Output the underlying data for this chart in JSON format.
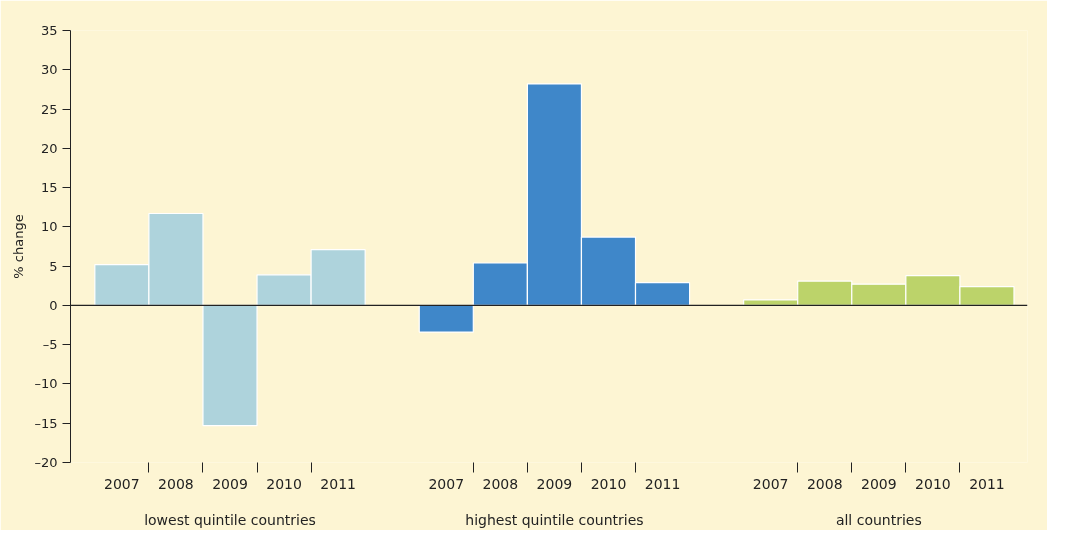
{
  "chart_data": {
    "type": "bar",
    "ylabel": "% change",
    "categories": [
      "2007",
      "2008",
      "2009",
      "2010",
      "2011",
      null,
      "2007",
      "2008",
      "2009",
      "2010",
      "2011",
      null,
      "2007",
      "2008",
      "2009",
      "2010",
      "2011"
    ],
    "series": [
      {
        "color": "#aed3dc",
        "values": [
          5.2,
          11.7,
          -15.3,
          3.9,
          7.1,
          null,
          null,
          null,
          null,
          null,
          null,
          null,
          null,
          null,
          null,
          null,
          null
        ]
      },
      {
        "color": "#3f87c9",
        "values": [
          null,
          null,
          null,
          null,
          null,
          null,
          -3.4,
          5.4,
          28.2,
          8.7,
          2.9,
          null,
          null,
          null,
          null,
          null,
          null
        ]
      },
      {
        "color": "#bcd36a",
        "values": [
          null,
          null,
          null,
          null,
          null,
          null,
          null,
          null,
          null,
          null,
          null,
          null,
          0.7,
          3.1,
          2.7,
          3.8,
          2.4
        ]
      }
    ],
    "annotations": [
      "lowest quintile countries",
      "highest quintile countries",
      "all countries"
    ],
    "ylim": [
      -20,
      35
    ],
    "yticks": [
      {
        "value": -20,
        "label": "–20"
      },
      {
        "value": -15,
        "label": "–15"
      },
      {
        "value": -10,
        "label": "–10"
      },
      {
        "value": -5,
        "label": "–5"
      },
      0,
      5,
      10,
      15,
      20,
      25,
      30,
      35
    ]
  }
}
